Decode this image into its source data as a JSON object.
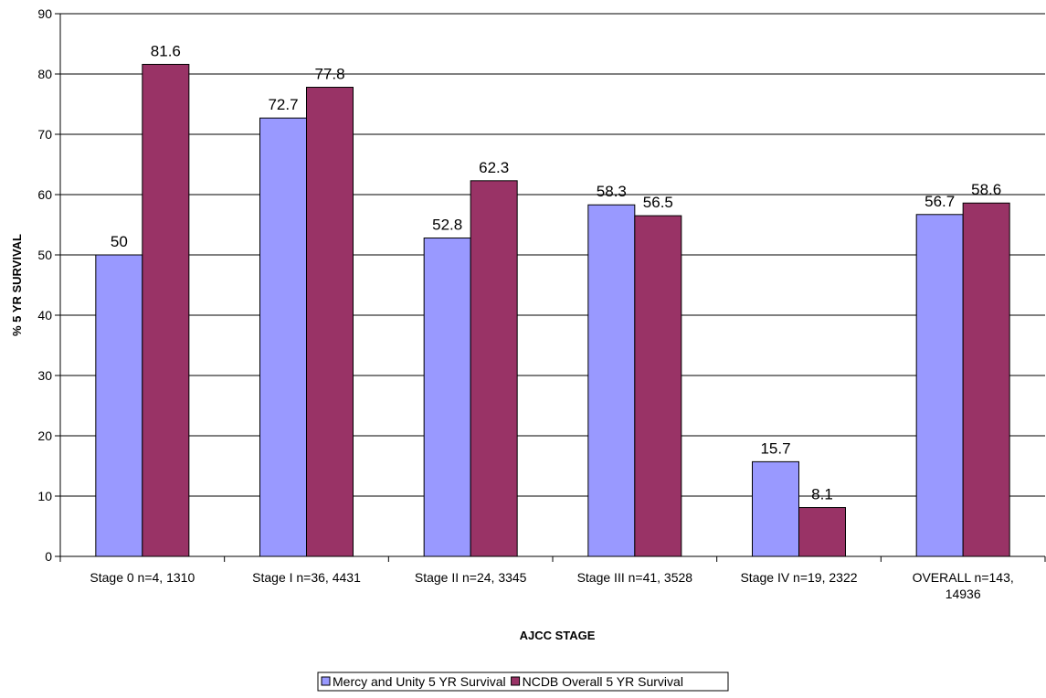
{
  "chart_data": {
    "type": "bar",
    "xlabel": "AJCC STAGE",
    "ylabel": "% 5 YR SURVIVAL",
    "ylim": [
      0,
      90
    ],
    "yticks": [
      0,
      10,
      20,
      30,
      40,
      50,
      60,
      70,
      80,
      90
    ],
    "grid": true,
    "legend_position": "bottom",
    "categories": [
      [
        "Stage 0 n=4, 1310"
      ],
      [
        "Stage I n=36, 4431"
      ],
      [
        "Stage II n=24, 3345"
      ],
      [
        "Stage III n=41, 3528"
      ],
      [
        "Stage IV n=19, 2322"
      ],
      [
        "OVERALL n=143,",
        "14936"
      ]
    ],
    "series": [
      {
        "name": "Mercy and Unity 5 YR Survival",
        "color": "#9999ff",
        "values": [
          50,
          72.7,
          52.8,
          58.3,
          15.7,
          56.7
        ]
      },
      {
        "name": "NCDB Overall 5 YR Survival",
        "color": "#993366",
        "values": [
          81.6,
          77.8,
          62.3,
          56.5,
          8.1,
          58.6
        ]
      }
    ]
  }
}
